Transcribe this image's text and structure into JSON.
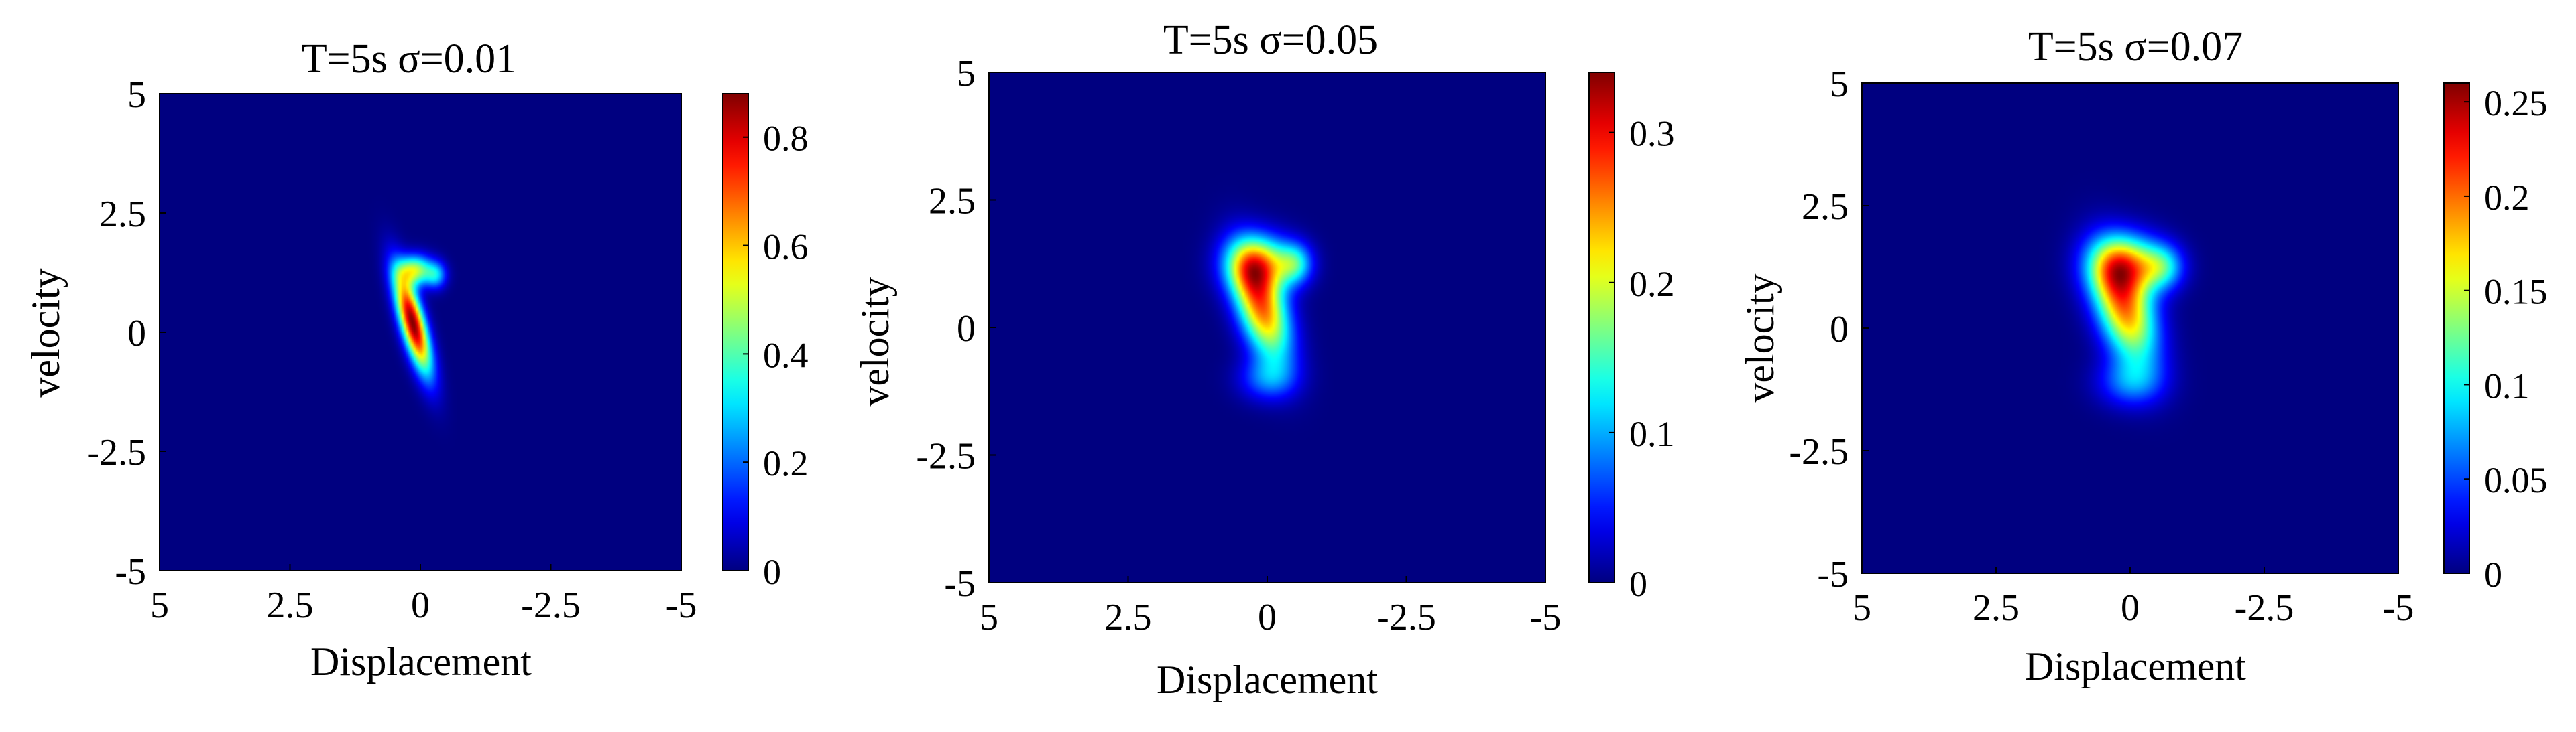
{
  "chart_data": [
    {
      "type": "heatmap",
      "title": "T=5s σ=0.01",
      "xlabel": "Displacement",
      "ylabel": "velocity",
      "xlim": [
        5,
        -5
      ],
      "ylim": [
        -5,
        5
      ],
      "x_ticks": [
        "5",
        "2.5",
        "0",
        "-2.5",
        "-5"
      ],
      "y_ticks": [
        "5",
        "2.5",
        "0",
        "-2.5",
        "-5"
      ],
      "colorbar": {
        "min": 0,
        "max": 0.88,
        "ticks": [
          "0",
          "0.2",
          "0.4",
          "0.6",
          "0.8"
        ],
        "tick_values": [
          0,
          0.2,
          0.4,
          0.6,
          0.8
        ]
      },
      "colormap": "jet",
      "peak_value": 0.88,
      "blobs": [
        {
          "x": 0.15,
          "y": 0.2,
          "sx": 0.16,
          "sy": 0.75,
          "rot": 0.25,
          "w": 1.0
        },
        {
          "x": 0.1,
          "y": 1.3,
          "sx": 0.22,
          "sy": 0.22,
          "rot": 0,
          "w": 0.55
        },
        {
          "x": -0.3,
          "y": 1.2,
          "sx": 0.14,
          "sy": 0.2,
          "rot": 0,
          "w": 0.3
        }
      ]
    },
    {
      "type": "heatmap",
      "title": "T=5s σ=0.05",
      "xlabel": "Displacement",
      "ylabel": "velocity",
      "xlim": [
        5,
        -5
      ],
      "ylim": [
        -5,
        5
      ],
      "x_ticks": [
        "5",
        "2.5",
        "0",
        "-2.5",
        "-5"
      ],
      "y_ticks": [
        "5",
        "2.5",
        "0",
        "-2.5",
        "-5"
      ],
      "colorbar": {
        "min": 0,
        "max": 0.34,
        "ticks": [
          "0",
          "0.1",
          "0.2",
          "0.3"
        ],
        "tick_values": [
          0,
          0.1,
          0.2,
          0.3
        ]
      },
      "colormap": "jet",
      "peak_value": 0.34,
      "blobs": [
        {
          "x": 0.1,
          "y": 0.4,
          "sx": 0.3,
          "sy": 0.75,
          "rot": 0.28,
          "w": 1.0
        },
        {
          "x": 0.15,
          "y": 1.25,
          "sx": 0.4,
          "sy": 0.38,
          "rot": 0,
          "w": 0.75
        },
        {
          "x": -0.5,
          "y": 1.25,
          "sx": 0.22,
          "sy": 0.28,
          "rot": 0,
          "w": 0.45
        },
        {
          "x": 0.0,
          "y": -1.0,
          "sx": 0.35,
          "sy": 0.3,
          "rot": 0,
          "w": 0.3
        }
      ]
    },
    {
      "type": "heatmap",
      "title": "T=5s σ=0.07",
      "xlabel": "Displacement",
      "ylabel": "velocity",
      "xlim": [
        5,
        -5
      ],
      "ylim": [
        -5,
        5
      ],
      "x_ticks": [
        "5",
        "2.5",
        "0",
        "-2.5",
        "-5"
      ],
      "y_ticks": [
        "5",
        "2.5",
        "0",
        "-2.5",
        "-5"
      ],
      "colorbar": {
        "min": 0,
        "max": 0.26,
        "ticks": [
          "0",
          "0.05",
          "0.1",
          "0.15",
          "0.2",
          "0.25"
        ],
        "tick_values": [
          0,
          0.05,
          0.1,
          0.15,
          0.2,
          0.25
        ]
      },
      "colormap": "jet",
      "peak_value": 0.26,
      "blobs": [
        {
          "x": 0.1,
          "y": 0.4,
          "sx": 0.36,
          "sy": 0.8,
          "rot": 0.28,
          "w": 1.0
        },
        {
          "x": 0.1,
          "y": 1.3,
          "sx": 0.45,
          "sy": 0.42,
          "rot": 0,
          "w": 0.8
        },
        {
          "x": -0.6,
          "y": 1.25,
          "sx": 0.28,
          "sy": 0.32,
          "rot": 0,
          "w": 0.45
        },
        {
          "x": 0.0,
          "y": -1.1,
          "sx": 0.42,
          "sy": 0.35,
          "rot": 0,
          "w": 0.32
        }
      ]
    }
  ]
}
